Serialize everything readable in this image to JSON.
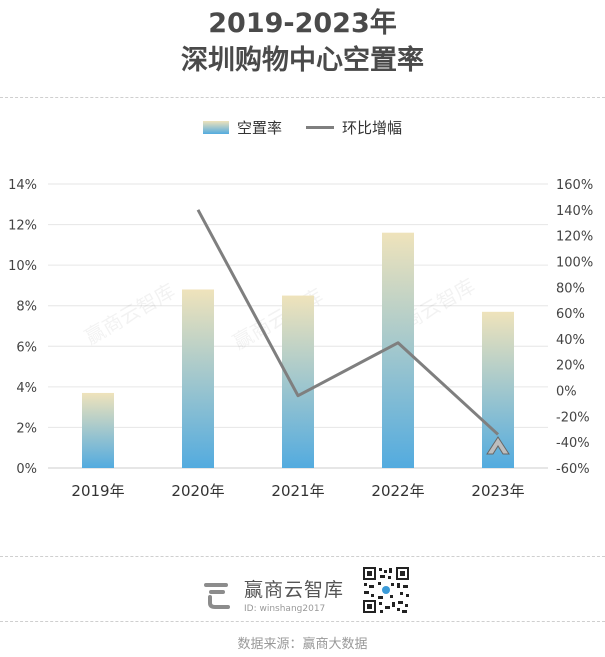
{
  "header": {
    "title_line1": "2019-2023年",
    "title_line2": "深圳购物中心空置率"
  },
  "watermark": "赢商云智库",
  "footer": {
    "brand_name": "赢商云智库",
    "brand_id": "ID: winshang2017",
    "source": "数据来源：赢商大数据"
  },
  "colors": {
    "bar_top": "#efe3bb",
    "bar_bottom": "#53abdf",
    "line": "#7f7f7f",
    "grid": "#e6e6e6"
  },
  "chart_data": {
    "type": "bar",
    "categories": [
      "2019年",
      "2020年",
      "2021年",
      "2022年",
      "2023年"
    ],
    "series": [
      {
        "name": "空置率",
        "type": "bar",
        "axis": "left",
        "values": [
          3.7,
          8.8,
          8.5,
          11.6,
          7.7
        ]
      },
      {
        "name": "环比增幅",
        "type": "line",
        "axis": "right",
        "values": [
          null,
          140,
          -4,
          37,
          -34
        ]
      }
    ],
    "y_left": {
      "ylim": [
        0,
        14
      ],
      "ticks": [
        "0%",
        "2%",
        "4%",
        "6%",
        "8%",
        "10%",
        "12%",
        "14%"
      ]
    },
    "y_right": {
      "ylim": [
        -60,
        160
      ],
      "ticks": [
        "-60%",
        "-40%",
        "-20%",
        "0%",
        "20%",
        "40%",
        "60%",
        "80%",
        "100%",
        "120%",
        "140%",
        "160%"
      ]
    },
    "grid": true,
    "legend": "top-center"
  }
}
